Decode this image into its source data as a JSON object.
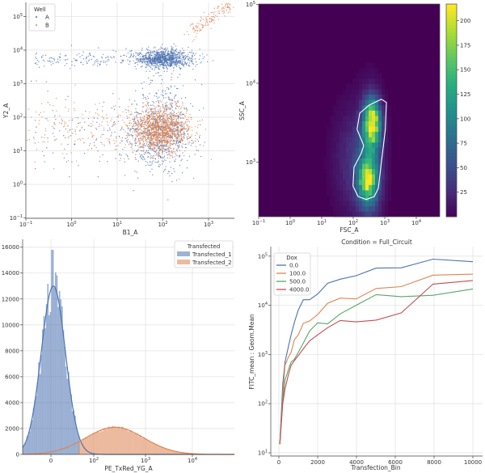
{
  "chart_data": [
    {
      "type": "scatter",
      "xlabel": "B1_A",
      "ylabel": "Y2_A",
      "xscale": "log",
      "yscale": "log",
      "xlim": [
        0.1,
        3700
      ],
      "ylim": [
        0.1,
        250000
      ],
      "xticks": [
        "10^-1",
        "10^0",
        "10^1",
        "10^2",
        "10^3"
      ],
      "yticks": [
        "10^-1",
        "10^0",
        "10^1",
        "10^2",
        "10^3",
        "10^4",
        "10^5"
      ],
      "legend": {
        "title": "Well",
        "placement": "top-left",
        "entries": [
          "A",
          "B"
        ]
      },
      "series": [
        {
          "name": "A",
          "color": "#4c72b0",
          "clusters": [
            {
              "x": 120,
              "y": 5500
            },
            {
              "x": 100,
              "y": 50
            }
          ]
        },
        {
          "name": "B",
          "color": "#dd8452",
          "clusters": [
            {
              "x": 100,
              "y": 50
            },
            {
              "x": 1000,
              "y": 120000
            }
          ]
        }
      ],
      "grid": true
    },
    {
      "type": "heatmap",
      "xlabel": "FSC_A",
      "ylabel": "SSC_A",
      "xscale": "log",
      "yscale": "log",
      "xlim": [
        0.1,
        55000
      ],
      "ylim": [
        200,
        100000
      ],
      "xticks": [
        "10^-1",
        "10^0",
        "10^1",
        "10^2",
        "10^3",
        "10^4"
      ],
      "yticks": [
        "10^3",
        "10^4",
        "10^5"
      ],
      "colormap": "viridis",
      "colorbar": {
        "range": [
          0,
          217
        ],
        "ticks": [
          25,
          50,
          75,
          100,
          125,
          150,
          175,
          200
        ]
      },
      "peaks": [
        {
          "x": 400,
          "y": 3000,
          "count": 215
        },
        {
          "x": 300,
          "y": 600,
          "count": 160
        }
      ],
      "contour_color": "#ffffff"
    },
    {
      "type": "histogram",
      "xlabel": "PE_TxRed_YG_A",
      "ylabel": "",
      "xscale": "symlog",
      "ylim": [
        0,
        16500
      ],
      "xticks": [
        "0",
        "10^2",
        "10^3",
        "10^4"
      ],
      "yticks": [
        0,
        2000,
        4000,
        6000,
        8000,
        10000,
        12000,
        14000,
        16000
      ],
      "legend": {
        "title": "Transfected",
        "placement": "top-right"
      },
      "series": [
        {
          "name": "Transfected_1",
          "color": "#4c72b0",
          "kde_peak": 13000,
          "peak_x": 5,
          "max_bar": 15800
        },
        {
          "name": "Transfected_2",
          "color": "#dd8452",
          "kde_peak": 2100,
          "peak_x": 260
        }
      ],
      "grid": true
    },
    {
      "type": "line",
      "title": "Condition = Full_Circuit",
      "xlabel": "Transfection_Bin",
      "ylabel": "FITC_mean : Geom.Mean",
      "yscale": "log",
      "xlim": [
        -400,
        10300
      ],
      "ylim": [
        10,
        120000
      ],
      "xticks": [
        0,
        2000,
        4000,
        6000,
        8000,
        10000
      ],
      "yticks": [
        "10^1",
        "10^2",
        "10^3",
        "10^4",
        "10^5"
      ],
      "legend": {
        "title": "Dox",
        "placement": "top-left"
      },
      "x": [
        50,
        200,
        316,
        500,
        630,
        800,
        1000,
        1260,
        1585,
        2000,
        2512,
        3162,
        3981,
        5012,
        6310,
        7943,
        10000
      ],
      "series": [
        {
          "name": "0.0",
          "color": "#4c72b0",
          "values": [
            15,
            250,
            700,
            1500,
            2500,
            4500,
            8000,
            13000,
            13000,
            17000,
            28000,
            34000,
            40000,
            57000,
            58000,
            87000,
            77000
          ]
        },
        {
          "name": "100.0",
          "color": "#dd8452",
          "values": [
            15,
            150,
            600,
            900,
            1100,
            2000,
            2500,
            4300,
            4800,
            6500,
            11000,
            14000,
            13500,
            22000,
            24000,
            41000,
            43000
          ]
        },
        {
          "name": "500.0",
          "color": "#55a868",
          "values": [
            15,
            120,
            300,
            500,
            700,
            800,
            1100,
            1700,
            3000,
            4400,
            4200,
            6700,
            10000,
            16500,
            15000,
            16000,
            21500
          ]
        },
        {
          "name": "4000.0",
          "color": "#c44e52",
          "values": [
            15,
            100,
            200,
            400,
            600,
            750,
            950,
            1300,
            1900,
            2500,
            3500,
            4900,
            4600,
            5000,
            7000,
            27000,
            32000
          ]
        }
      ],
      "grid": true
    }
  ]
}
